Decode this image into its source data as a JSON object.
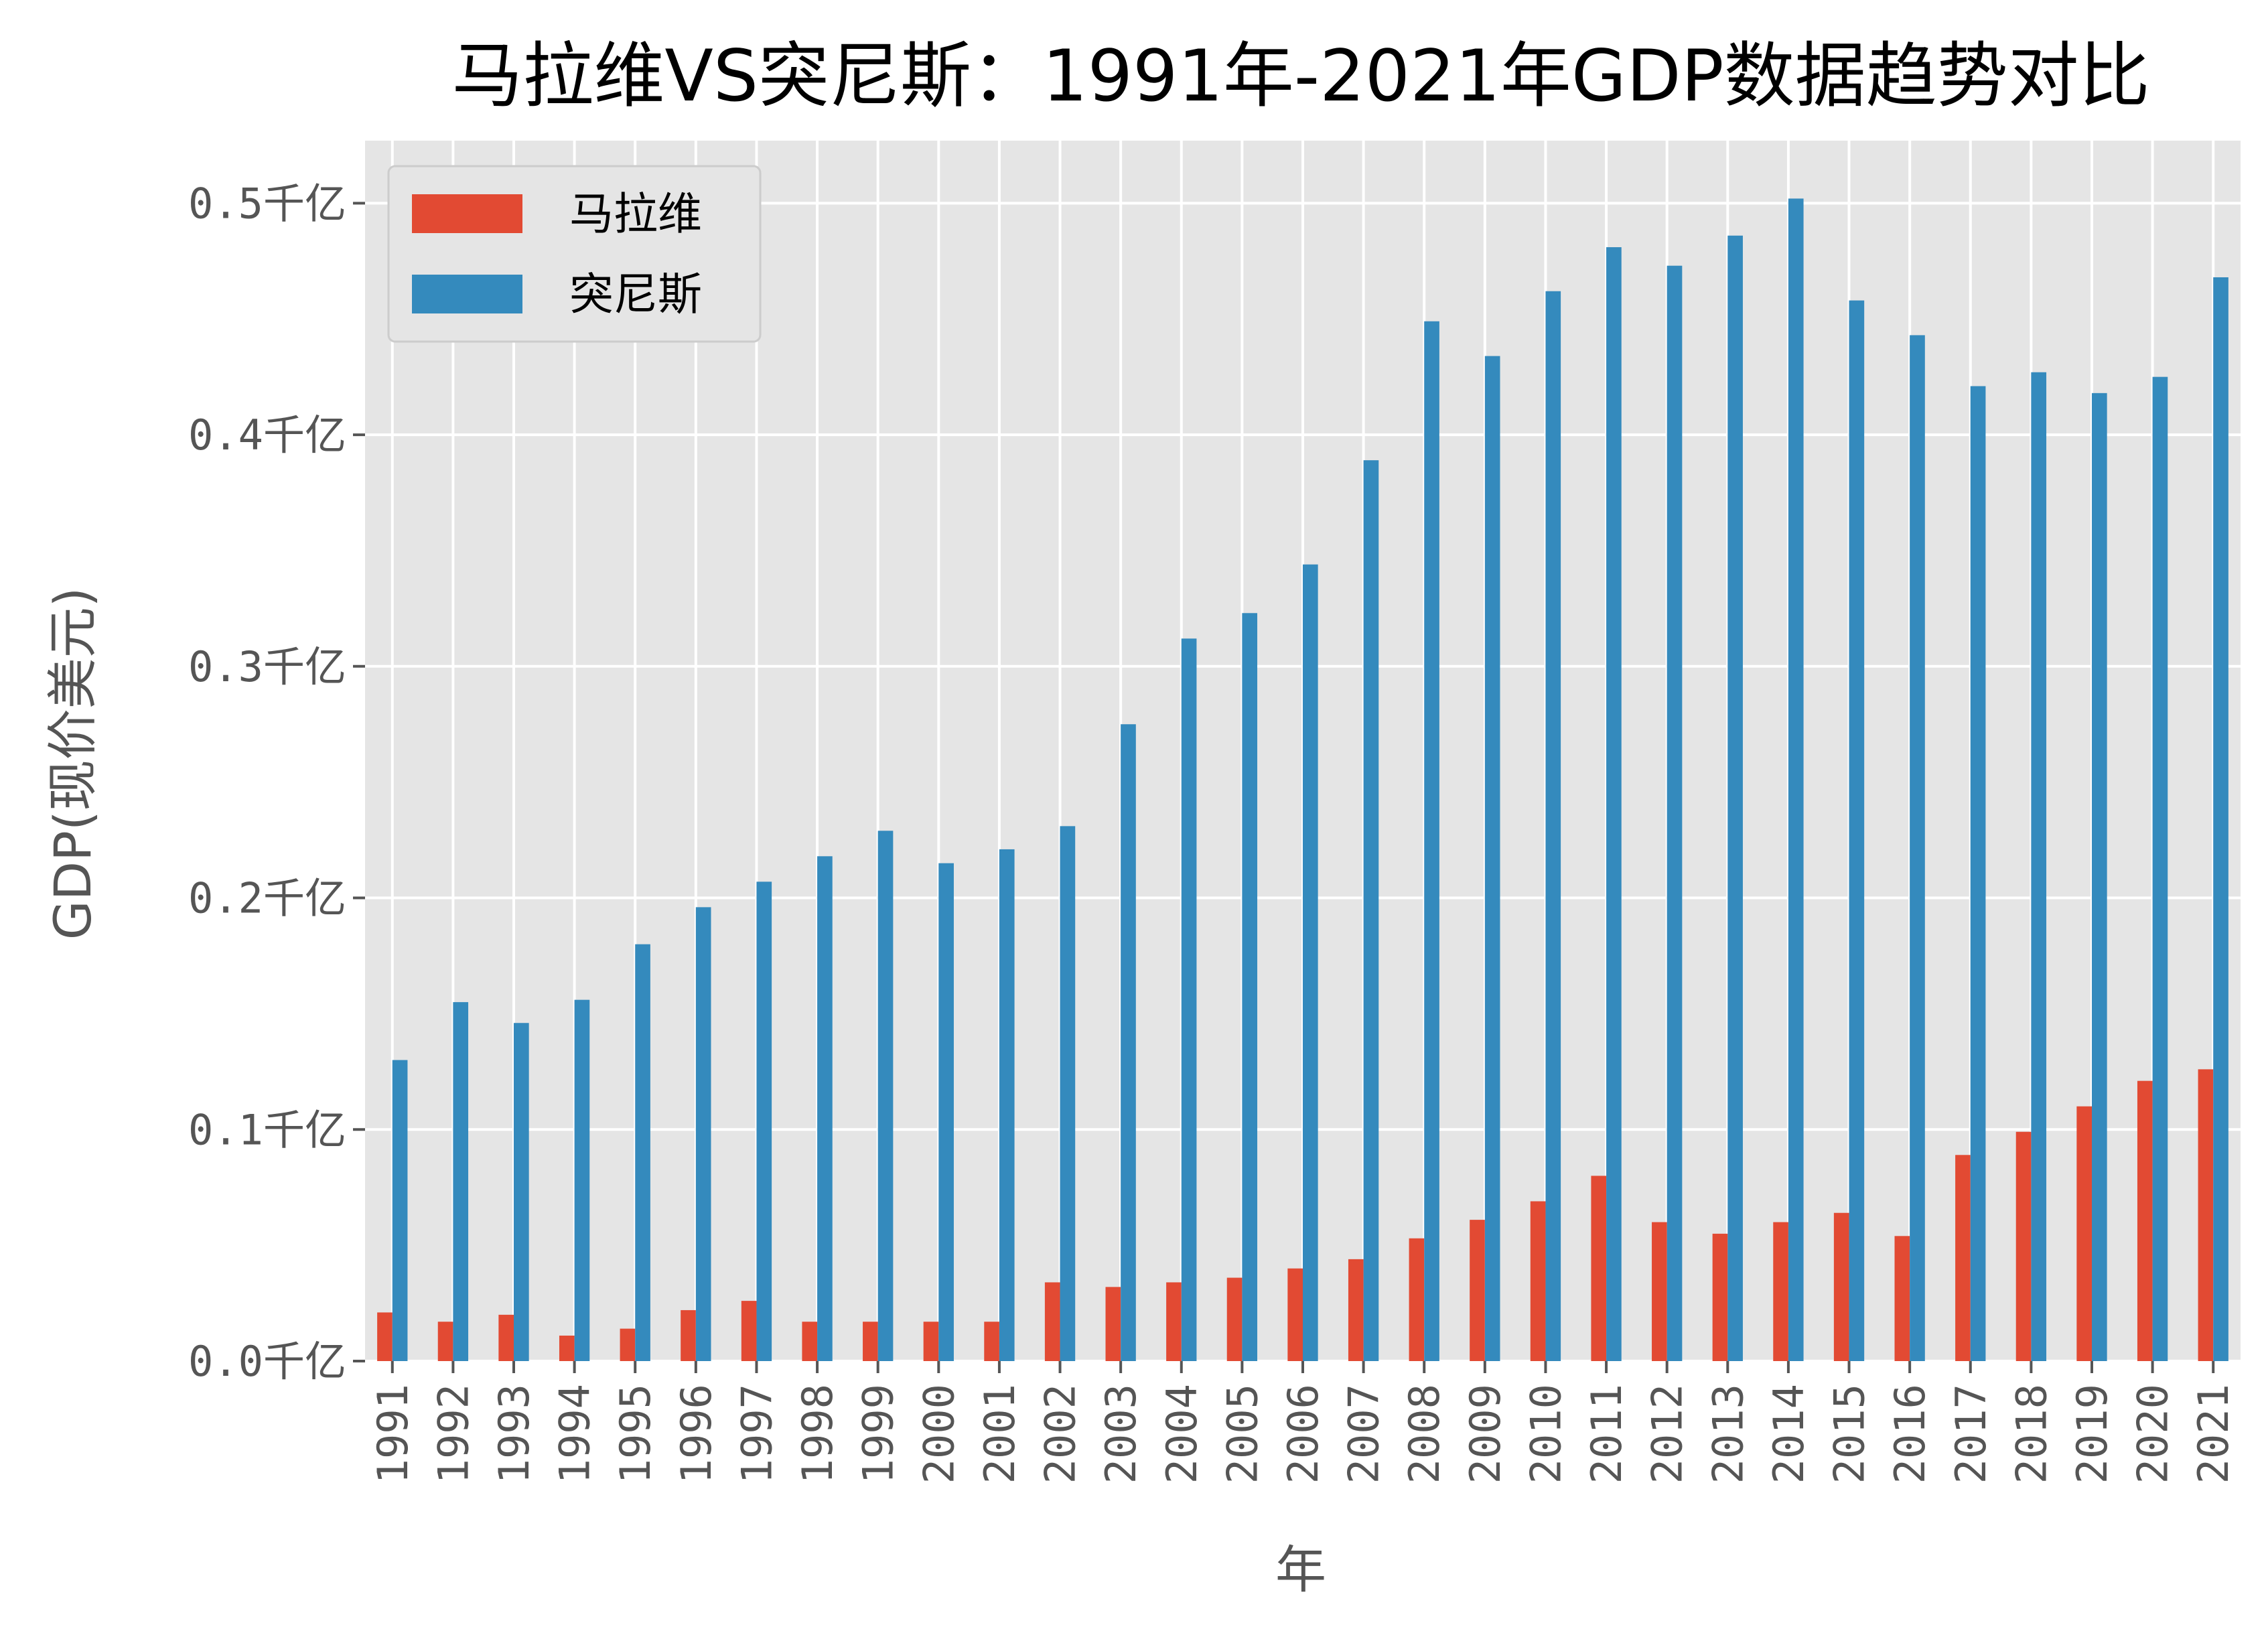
{
  "chart_data": {
    "type": "bar",
    "title": "马拉维VS突尼斯：1991年-2021年GDP数据趋势对比",
    "xlabel": "年",
    "ylabel": "GDP(现价美元)",
    "ylim": [
      0,
      0.527
    ],
    "yticks": [
      {
        "value": 0.0,
        "label": "0.0千亿"
      },
      {
        "value": 0.1,
        "label": "0.1千亿"
      },
      {
        "value": 0.2,
        "label": "0.2千亿"
      },
      {
        "value": 0.3,
        "label": "0.3千亿"
      },
      {
        "value": 0.4,
        "label": "0.4千亿"
      },
      {
        "value": 0.5,
        "label": "0.5千亿"
      }
    ],
    "grid": true,
    "legend_position": "top-left",
    "categories": [
      "1991",
      "1992",
      "1993",
      "1994",
      "1995",
      "1996",
      "1997",
      "1998",
      "1999",
      "2000",
      "2001",
      "2002",
      "2003",
      "2004",
      "2005",
      "2006",
      "2007",
      "2008",
      "2009",
      "2010",
      "2011",
      "2012",
      "2013",
      "2014",
      "2015",
      "2016",
      "2017",
      "2018",
      "2019",
      "2020",
      "2021"
    ],
    "series": [
      {
        "name": "马拉维",
        "color": "#e24a33",
        "values": [
          0.021,
          0.017,
          0.02,
          0.011,
          0.014,
          0.022,
          0.026,
          0.017,
          0.017,
          0.017,
          0.017,
          0.034,
          0.032,
          0.034,
          0.036,
          0.04,
          0.044,
          0.053,
          0.061,
          0.069,
          0.08,
          0.06,
          0.055,
          0.06,
          0.064,
          0.054,
          0.089,
          0.099,
          0.11,
          0.121,
          0.126
        ]
      },
      {
        "name": "突尼斯",
        "color": "#348abd",
        "values": [
          0.13,
          0.155,
          0.146,
          0.156,
          0.18,
          0.196,
          0.207,
          0.218,
          0.229,
          0.215,
          0.221,
          0.231,
          0.275,
          0.312,
          0.323,
          0.344,
          0.389,
          0.449,
          0.434,
          0.462,
          0.481,
          0.473,
          0.486,
          0.502,
          0.458,
          0.443,
          0.421,
          0.427,
          0.418,
          0.425,
          0.468
        ]
      }
    ]
  }
}
